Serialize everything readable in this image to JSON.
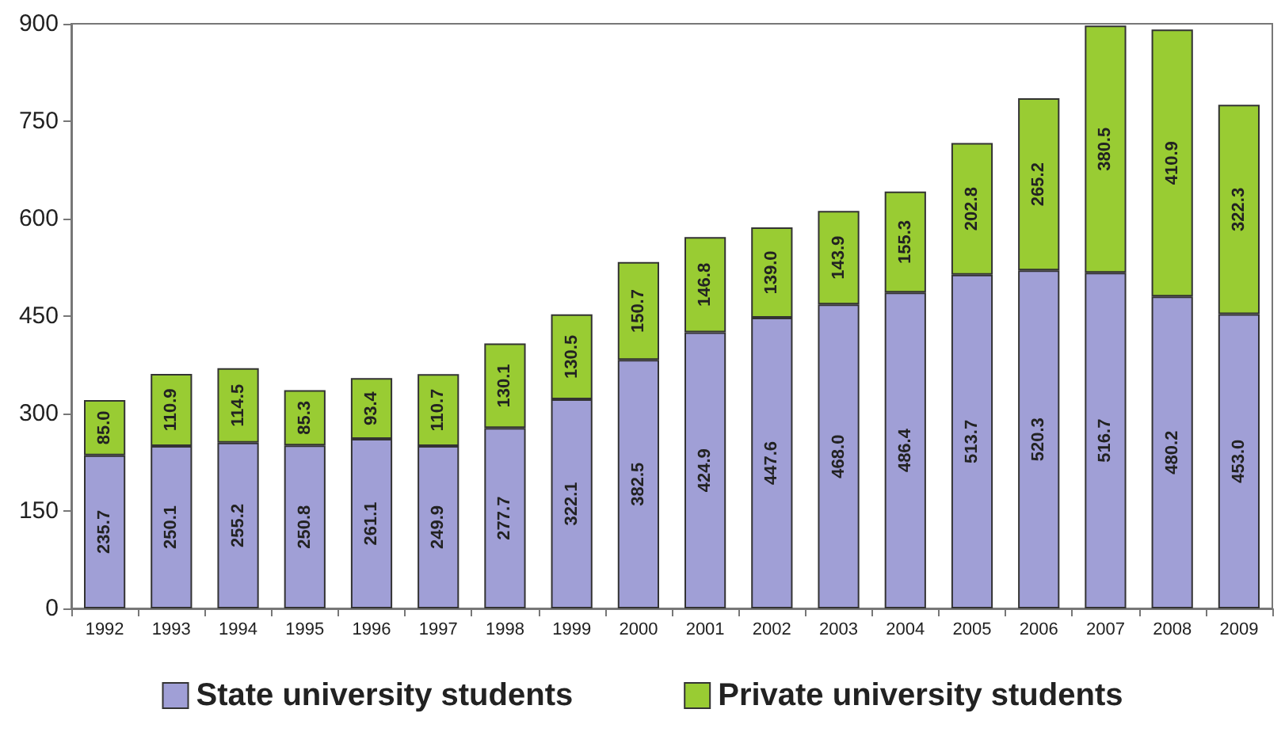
{
  "chart_data": {
    "type": "bar",
    "stacked": true,
    "categories": [
      "1992",
      "1993",
      "1994",
      "1995",
      "1996",
      "1997",
      "1998",
      "1999",
      "2000",
      "2001",
      "2002",
      "2003",
      "2004",
      "2005",
      "2006",
      "2007",
      "2008",
      "2009"
    ],
    "series": [
      {
        "name": "State university students",
        "color": "#a09fd6",
        "values": [
          235.7,
          250.1,
          255.2,
          250.8,
          261.1,
          249.9,
          277.7,
          322.1,
          382.5,
          424.9,
          447.6,
          468.0,
          486.4,
          513.7,
          520.3,
          516.7,
          480.2,
          453.0
        ],
        "value_labels": [
          "235.7",
          "250.1",
          "255.2",
          "250.8",
          "261.1",
          "249.9",
          "277.7",
          "322.1",
          "382.5",
          "424.9",
          "447.6",
          "468.0",
          "486.4",
          "513.7",
          "520.3",
          "516.7",
          "480.2",
          "453.0"
        ]
      },
      {
        "name": "Private university students",
        "color": "#99cc33",
        "values": [
          85.0,
          110.9,
          114.5,
          85.3,
          93.4,
          110.7,
          130.1,
          130.5,
          150.7,
          146.8,
          139.0,
          143.9,
          155.3,
          202.8,
          265.2,
          380.5,
          410.9,
          322.3
        ],
        "value_labels": [
          "85.0",
          "110.9",
          "114.5",
          "85.3",
          "93.4",
          "110.7",
          "130.1",
          "130.5",
          "150.7",
          "146.8",
          "139.0",
          "143.9",
          "155.3",
          "202.8",
          "265.2",
          "380.5",
          "410.9",
          "322.3"
        ]
      }
    ],
    "ylim": [
      0,
      900
    ],
    "yticks": [
      0,
      150,
      300,
      450,
      600,
      750,
      900
    ],
    "grid": false,
    "legend": "bottom"
  }
}
